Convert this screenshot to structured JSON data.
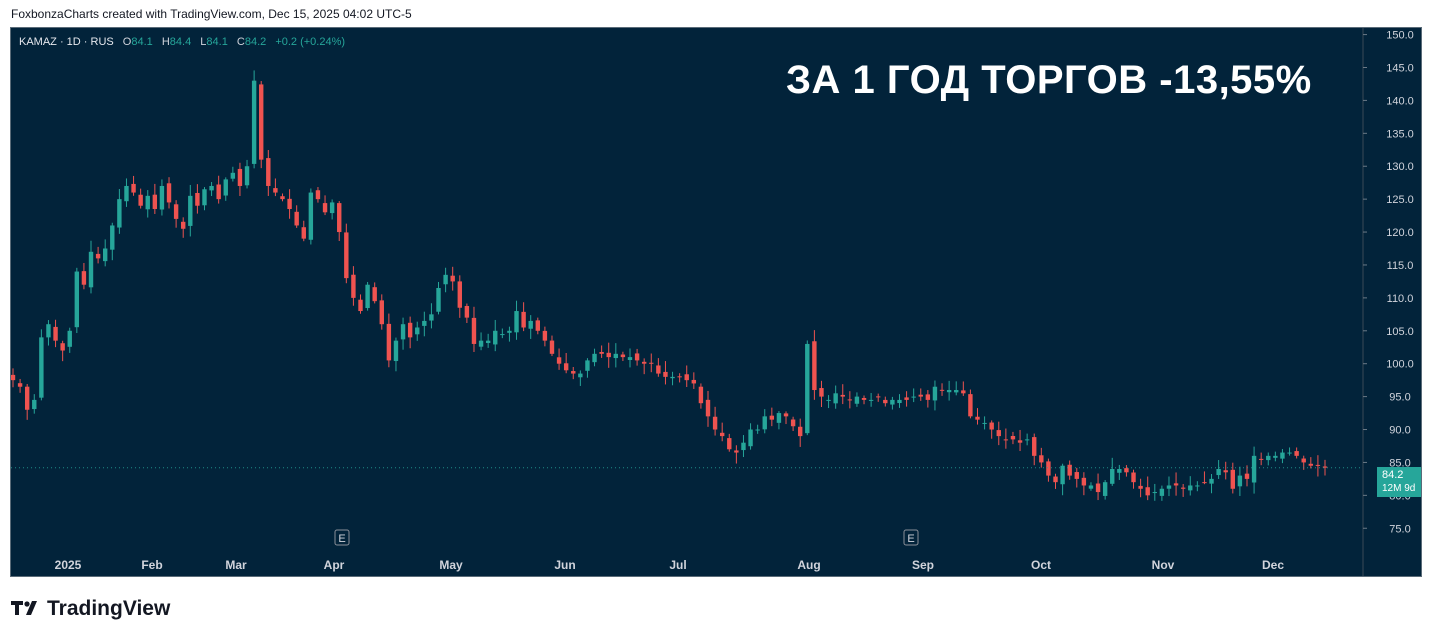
{
  "attribution": "FoxbonzaCharts created with TradingView.com, Dec 15, 2025 04:02 UTC-5",
  "legend": {
    "symbol": "KAMAZ · 1D · RUS",
    "open_label": "O",
    "open": "84.1",
    "high_label": "H",
    "high": "84.4",
    "low_label": "L",
    "low": "84.1",
    "close_label": "C",
    "close": "84.2",
    "change": "+0.2 (+0.24%)"
  },
  "headline": "ЗА 1 ГОД ТОРГОВ -13,55%",
  "last_price": {
    "value": "84.2",
    "extra": "12M 9d"
  },
  "branding": "TradingView",
  "colors": {
    "background": "#02233a",
    "up": "#26a69a",
    "down": "#ef5350",
    "text": "#d1d4dc"
  },
  "chart_data": {
    "type": "candlestick",
    "yaxis": {
      "ylim": [
        72,
        151
      ],
      "ticks": [
        150,
        145,
        140,
        135,
        130,
        125,
        120,
        115,
        110,
        105,
        100,
        95,
        90,
        85,
        80,
        75
      ],
      "position": "right"
    },
    "xaxis": {
      "tick_labels": [
        "2025",
        "Feb",
        "Mar",
        "Apr",
        "May",
        "Jun",
        "Jul",
        "Aug",
        "Sep",
        "Oct",
        "Nov",
        "Dec"
      ]
    },
    "event_markers": [
      {
        "label": "E",
        "near": "Apr"
      },
      {
        "label": "E",
        "near": "Sep"
      }
    ],
    "series": [
      {
        "values": [
          97.5,
          96.5,
          93,
          94.5,
          104,
          106,
          103.5,
          102,
          105,
          114,
          112,
          117,
          116,
          117.5,
          121,
          125,
          127,
          126,
          124,
          125.5,
          123.5,
          127,
          124.5,
          122,
          120.5,
          125.5,
          124,
          126.5,
          127,
          125,
          128,
          129,
          127,
          130,
          143,
          131,
          127,
          126,
          125,
          123.5,
          121,
          119,
          126,
          125,
          123,
          124.5,
          120,
          113,
          110,
          108,
          112,
          109.5,
          106,
          100.5,
          103.5,
          106,
          104,
          105.5,
          106.5,
          107.5,
          111.5,
          113.5,
          112.5,
          108.5,
          107,
          103,
          103.5,
          103.5,
          105,
          104.5,
          105,
          108,
          105.5,
          106.5,
          105,
          103.5,
          101.5,
          100,
          99,
          98.5,
          98.5,
          100.5,
          101.5,
          101.5,
          101,
          101.5,
          101,
          101,
          100.5,
          100,
          100,
          98.5,
          98,
          98,
          98,
          97.5,
          97,
          94,
          92,
          90,
          89,
          87,
          86.5,
          88,
          90,
          90,
          92,
          91.5,
          92.5,
          92,
          90.5,
          89,
          103,
          96,
          95,
          94.5,
          95.5,
          95,
          94.5,
          95,
          94.5,
          94.5,
          95,
          94,
          94.5,
          94.5,
          94.5,
          95,
          95,
          94.5,
          96.5,
          96,
          96,
          96,
          95.5,
          92,
          91.5,
          91,
          90,
          89,
          88.5,
          88.5,
          88,
          88.5,
          86,
          85,
          83,
          82,
          84.5,
          83,
          82.5,
          81.5,
          81.5,
          80.5,
          82,
          84,
          84,
          83.5,
          82,
          81,
          80,
          80.5,
          81,
          81.5,
          81.5,
          81,
          81.5,
          81.5,
          82,
          82.5,
          84,
          83.5,
          81,
          83,
          82.5,
          86,
          85.5,
          86,
          86,
          86.5,
          86.5,
          86,
          85,
          84.5,
          84.5,
          84.2
        ]
      }
    ]
  }
}
